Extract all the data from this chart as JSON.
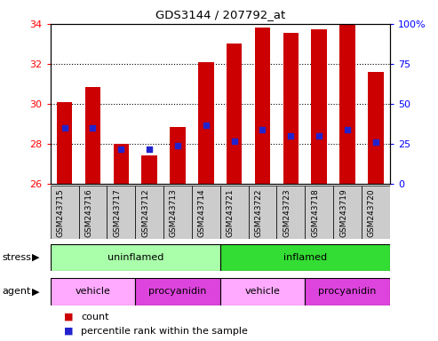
{
  "title": "GDS3144 / 207792_at",
  "samples": [
    "GSM243715",
    "GSM243716",
    "GSM243717",
    "GSM243712",
    "GSM243713",
    "GSM243714",
    "GSM243721",
    "GSM243722",
    "GSM243723",
    "GSM243718",
    "GSM243719",
    "GSM243720"
  ],
  "counts": [
    30.1,
    30.85,
    28.0,
    27.45,
    28.85,
    32.1,
    33.0,
    33.8,
    33.55,
    33.75,
    34.0,
    31.6
  ],
  "percentile_vals": [
    35,
    35,
    22,
    22,
    24,
    37,
    27,
    34,
    30,
    30,
    34,
    26
  ],
  "ylim_left": [
    26,
    34
  ],
  "ylim_right": [
    0,
    100
  ],
  "yticks_left": [
    26,
    28,
    30,
    32,
    34
  ],
  "yticks_right": [
    0,
    25,
    50,
    75,
    100
  ],
  "ytick_labels_right": [
    "0",
    "25",
    "50",
    "75",
    "100%"
  ],
  "bar_color": "#cc0000",
  "dot_color": "#2222cc",
  "bar_bottom": 26,
  "stress_groups": [
    {
      "label": "uninflamed",
      "start": 0,
      "end": 6,
      "color": "#aaffaa"
    },
    {
      "label": "inflamed",
      "start": 6,
      "end": 12,
      "color": "#33dd33"
    }
  ],
  "agent_groups": [
    {
      "label": "vehicle",
      "start": 0,
      "end": 3,
      "color": "#ffaaff"
    },
    {
      "label": "procyanidin",
      "start": 3,
      "end": 6,
      "color": "#dd44dd"
    },
    {
      "label": "vehicle",
      "start": 6,
      "end": 9,
      "color": "#ffaaff"
    },
    {
      "label": "procyanidin",
      "start": 9,
      "end": 12,
      "color": "#dd44dd"
    }
  ],
  "bar_width": 0.55,
  "legend_count_color": "#cc0000",
  "legend_pct_color": "#2222cc",
  "tick_bg_color": "#cccccc"
}
